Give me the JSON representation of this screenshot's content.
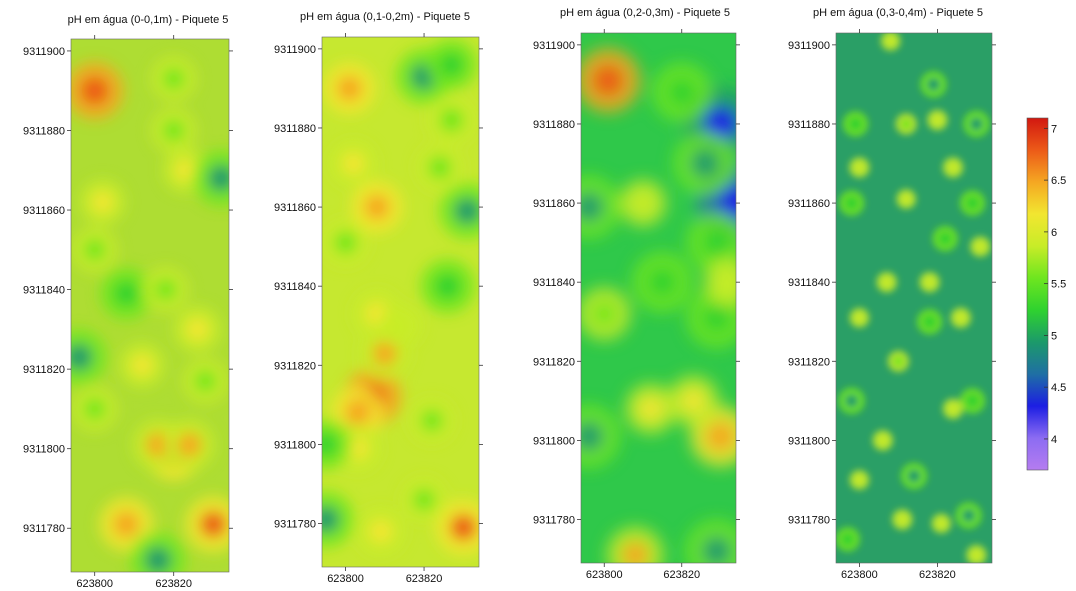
{
  "chart_data": [
    {
      "type": "heatmap",
      "title": "pH em água (0-0,1m) - Piquete 5",
      "x_ticks": [
        "623800",
        "623820"
      ],
      "y_ticks": [
        "9311780",
        "9311800",
        "9311820",
        "9311840",
        "9311860",
        "9311880",
        "9311900"
      ],
      "xlim": [
        623794,
        623834
      ],
      "ylim": [
        9311769,
        9311903
      ],
      "hotspots": [
        {
          "x": 623800,
          "y": 9311890,
          "value": 6.8
        },
        {
          "x": 623820,
          "y": 9311799,
          "value": 6.7
        },
        {
          "x": 623816,
          "y": 9311801,
          "value": 6.4
        },
        {
          "x": 623824,
          "y": 9311801,
          "value": 6.4
        },
        {
          "x": 623808,
          "y": 9311781,
          "value": 6.6
        },
        {
          "x": 623830,
          "y": 9311781,
          "value": 6.7
        },
        {
          "x": 623826,
          "y": 9311830,
          "value": 6.2
        },
        {
          "x": 623812,
          "y": 9311821,
          "value": 6.1
        },
        {
          "x": 623823,
          "y": 9311870,
          "value": 6.1
        },
        {
          "x": 623802,
          "y": 9311862,
          "value": 6.1
        },
        {
          "x": 623832,
          "y": 9311868,
          "value": 5.0
        },
        {
          "x": 623796,
          "y": 9311823,
          "value": 5.0
        },
        {
          "x": 623808,
          "y": 9311839,
          "value": 5.2
        },
        {
          "x": 623816,
          "y": 9311772,
          "value": 5.0
        },
        {
          "x": 623820,
          "y": 9311893,
          "value": 5.6
        },
        {
          "x": 623820,
          "y": 9311880,
          "value": 5.6
        },
        {
          "x": 623800,
          "y": 9311850,
          "value": 5.6
        },
        {
          "x": 623818,
          "y": 9311840,
          "value": 5.6
        },
        {
          "x": 623800,
          "y": 9311810,
          "value": 5.6
        },
        {
          "x": 623828,
          "y": 9311817,
          "value": 5.6
        }
      ]
    },
    {
      "type": "heatmap",
      "title": "pH em água (0,1-0,2m) - Piquete 5",
      "x_ticks": [
        "623800",
        "623820"
      ],
      "y_ticks": [
        "9311780",
        "9311800",
        "9311820",
        "9311840",
        "9311860",
        "9311880",
        "9311900"
      ],
      "xlim": [
        623794,
        623834
      ],
      "ylim": [
        9311769,
        9311903
      ],
      "hotspots": [
        {
          "x": 623801,
          "y": 9311890,
          "value": 6.5
        },
        {
          "x": 623808,
          "y": 9311860,
          "value": 6.5
        },
        {
          "x": 623802,
          "y": 9311871,
          "value": 6.2
        },
        {
          "x": 623807,
          "y": 9311812,
          "value": 6.8
        },
        {
          "x": 623803,
          "y": 9311808,
          "value": 6.5
        },
        {
          "x": 623810,
          "y": 9311823,
          "value": 6.4
        },
        {
          "x": 623808,
          "y": 9311833,
          "value": 6.3
        },
        {
          "x": 623814,
          "y": 9311830,
          "value": 6.0
        },
        {
          "x": 623830,
          "y": 9311779,
          "value": 6.7
        },
        {
          "x": 623809,
          "y": 9311778,
          "value": 6.3
        },
        {
          "x": 623803,
          "y": 9311799,
          "value": 6.2
        },
        {
          "x": 623820,
          "y": 9311893,
          "value": 5.0
        },
        {
          "x": 623827,
          "y": 9311896,
          "value": 5.3
        },
        {
          "x": 623827,
          "y": 9311882,
          "value": 5.4
        },
        {
          "x": 623831,
          "y": 9311859,
          "value": 5.0
        },
        {
          "x": 623826,
          "y": 9311840,
          "value": 5.1
        },
        {
          "x": 623824,
          "y": 9311870,
          "value": 5.5
        },
        {
          "x": 623795,
          "y": 9311781,
          "value": 5.0
        },
        {
          "x": 623795,
          "y": 9311800,
          "value": 5.3
        },
        {
          "x": 623800,
          "y": 9311851,
          "value": 5.5
        },
        {
          "x": 623822,
          "y": 9311806,
          "value": 5.6
        },
        {
          "x": 623820,
          "y": 9311786,
          "value": 5.6
        }
      ]
    },
    {
      "type": "heatmap",
      "title": "pH em água (0,2-0,3m) - Piquete 5",
      "x_ticks": [
        "623800",
        "623820"
      ],
      "y_ticks": [
        "9311780",
        "9311800",
        "9311820",
        "9311840",
        "9311860",
        "9311880",
        "9311900"
      ],
      "xlim": [
        623794,
        623834
      ],
      "ylim": [
        9311769,
        9311903
      ],
      "hotspots": [
        {
          "x": 623801,
          "y": 9311891,
          "value": 6.8
        },
        {
          "x": 623830,
          "y": 9311801,
          "value": 6.6
        },
        {
          "x": 623823,
          "y": 9311810,
          "value": 6.1
        },
        {
          "x": 623812,
          "y": 9311808,
          "value": 6.1
        },
        {
          "x": 623808,
          "y": 9311771,
          "value": 6.4
        },
        {
          "x": 623830,
          "y": 9311880,
          "value": 4.4
        },
        {
          "x": 623834,
          "y": 9311860,
          "value": 4.2
        },
        {
          "x": 623820,
          "y": 9311888,
          "value": 5.2
        },
        {
          "x": 623826,
          "y": 9311870,
          "value": 5.0
        },
        {
          "x": 623829,
          "y": 9311850,
          "value": 5.1
        },
        {
          "x": 623796,
          "y": 9311859,
          "value": 5.0
        },
        {
          "x": 623815,
          "y": 9311840,
          "value": 5.1
        },
        {
          "x": 623829,
          "y": 9311831,
          "value": 5.1
        },
        {
          "x": 623796,
          "y": 9311801,
          "value": 5.0
        },
        {
          "x": 623829,
          "y": 9311772,
          "value": 5.0
        },
        {
          "x": 623800,
          "y": 9311832,
          "value": 5.5
        },
        {
          "x": 623832,
          "y": 9311840,
          "value": 6.0
        },
        {
          "x": 623810,
          "y": 9311860,
          "value": 5.8
        }
      ]
    },
    {
      "type": "heatmap",
      "title": "pH em água (0,3-0,4m) - Piquete 5",
      "x_ticks": [
        "623800",
        "623820"
      ],
      "y_ticks": [
        "9311780",
        "9311800",
        "9311820",
        "9311840",
        "9311860",
        "9311880",
        "9311900"
      ],
      "xlim": [
        623794,
        623834
      ],
      "ylim": [
        9311769,
        9311903
      ],
      "hotspots": [
        {
          "x": 623808,
          "y": 9311901,
          "value": 5.9
        },
        {
          "x": 623819,
          "y": 9311890,
          "value": 5.0
        },
        {
          "x": 623830,
          "y": 9311880,
          "value": 5.0
        },
        {
          "x": 623799,
          "y": 9311880,
          "value": 5.1
        },
        {
          "x": 623812,
          "y": 9311880,
          "value": 5.6
        },
        {
          "x": 623820,
          "y": 9311881,
          "value": 6.0
        },
        {
          "x": 623800,
          "y": 9311869,
          "value": 6.0
        },
        {
          "x": 623812,
          "y": 9311861,
          "value": 5.9
        },
        {
          "x": 623824,
          "y": 9311869,
          "value": 6.0
        },
        {
          "x": 623798,
          "y": 9311860,
          "value": 5.1
        },
        {
          "x": 623829,
          "y": 9311860,
          "value": 5.1
        },
        {
          "x": 623822,
          "y": 9311851,
          "value": 5.1
        },
        {
          "x": 623807,
          "y": 9311840,
          "value": 6.0
        },
        {
          "x": 623818,
          "y": 9311840,
          "value": 6.0
        },
        {
          "x": 623831,
          "y": 9311849,
          "value": 6.0
        },
        {
          "x": 623800,
          "y": 9311831,
          "value": 5.9
        },
        {
          "x": 623826,
          "y": 9311831,
          "value": 6.0
        },
        {
          "x": 623818,
          "y": 9311830,
          "value": 5.1
        },
        {
          "x": 623810,
          "y": 9311820,
          "value": 5.6
        },
        {
          "x": 623798,
          "y": 9311810,
          "value": 5.0
        },
        {
          "x": 623829,
          "y": 9311810,
          "value": 5.1
        },
        {
          "x": 623806,
          "y": 9311800,
          "value": 6.0
        },
        {
          "x": 623824,
          "y": 9311808,
          "value": 6.0
        },
        {
          "x": 623814,
          "y": 9311791,
          "value": 5.0
        },
        {
          "x": 623800,
          "y": 9311790,
          "value": 5.8
        },
        {
          "x": 623828,
          "y": 9311781,
          "value": 5.0
        },
        {
          "x": 623811,
          "y": 9311780,
          "value": 6.0
        },
        {
          "x": 623821,
          "y": 9311779,
          "value": 5.9
        },
        {
          "x": 623797,
          "y": 9311775,
          "value": 5.2
        },
        {
          "x": 623830,
          "y": 9311771,
          "value": 6.0
        }
      ]
    }
  ],
  "colorbar": {
    "ticks": [
      "7",
      "6.5",
      "6",
      "5.5",
      "5",
      "4.5",
      "4"
    ],
    "range": [
      3.7,
      7.1
    ],
    "colors": [
      "#b57cf0",
      "#8c6cf2",
      "#1c1ee3",
      "#1f6fa4",
      "#1c9a6a",
      "#2fd22f",
      "#6ee61f",
      "#c8ec28",
      "#f2e630",
      "#f5a722",
      "#ec5a18",
      "#d21810"
    ]
  }
}
